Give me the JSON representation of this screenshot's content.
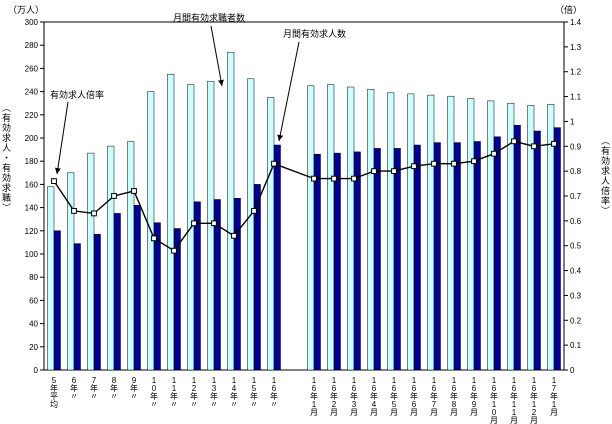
{
  "annotations": [
    {
      "id": "ratio-label",
      "text": "有効求人倍率"
    },
    {
      "id": "seekers-label",
      "text": "月間有効求職者数"
    },
    {
      "id": "openings-label",
      "text": "月間有効求人数"
    }
  ],
  "chart_data": {
    "type": "bar",
    "title": "",
    "categories": [
      "5年平均",
      "6年〃",
      "7年〃",
      "8年〃",
      "9年〃",
      "10年〃",
      "11年〃",
      "12年〃",
      "13年〃",
      "14年〃",
      "15年〃",
      "16年〃",
      "16年1月",
      "16年2月",
      "16年3月",
      "16年4月",
      "16年5月",
      "16年6月",
      "16年7月",
      "16年8月",
      "16年9月",
      "16年10月",
      "16年11月",
      "16年12月",
      "17年1月"
    ],
    "gap_after_index": 11,
    "left_axis": {
      "unit": "（万人）",
      "title": "（有効求人・有効求職）",
      "min": 0,
      "max": 300,
      "ticks": [
        0,
        20,
        40,
        60,
        80,
        100,
        120,
        140,
        160,
        180,
        200,
        220,
        240,
        260,
        280,
        300
      ]
    },
    "right_axis": {
      "unit": "（倍）",
      "title": "（有効求人倍率）",
      "min": 0,
      "max": 1.4,
      "ticks": [
        "0",
        "0.1",
        "0.2",
        "0.3",
        "0.4",
        "0.5",
        "0.6",
        "0.7",
        "0.8",
        "0.9",
        "1",
        "1.1",
        "1.2",
        "1.3",
        "1.4"
      ]
    },
    "series": [
      {
        "name": "月間有効求職者数",
        "type": "bar",
        "axis": "left",
        "color": "#ccffff",
        "values": [
          158,
          170,
          187,
          193,
          197,
          240,
          255,
          246,
          249,
          274,
          251,
          235,
          245,
          246,
          244,
          242,
          239,
          238,
          237,
          236,
          234,
          232,
          230,
          228,
          229
        ]
      },
      {
        "name": "月間有効求人数",
        "type": "bar",
        "axis": "left",
        "color": "#000099",
        "values": [
          120,
          109,
          117,
          135,
          142,
          127,
          122,
          145,
          147,
          148,
          160,
          194,
          186,
          187,
          188,
          191,
          191,
          194,
          196,
          196,
          197,
          201,
          211,
          206,
          209
        ]
      },
      {
        "name": "有効求人倍率",
        "type": "line",
        "axis": "right",
        "color": "#000000",
        "values": [
          0.76,
          0.64,
          0.63,
          0.7,
          0.72,
          0.53,
          0.48,
          0.59,
          0.59,
          0.54,
          0.64,
          0.83,
          0.77,
          0.77,
          0.77,
          0.8,
          0.8,
          0.82,
          0.83,
          0.83,
          0.84,
          0.87,
          0.92,
          0.9,
          0.91
        ]
      }
    ]
  }
}
